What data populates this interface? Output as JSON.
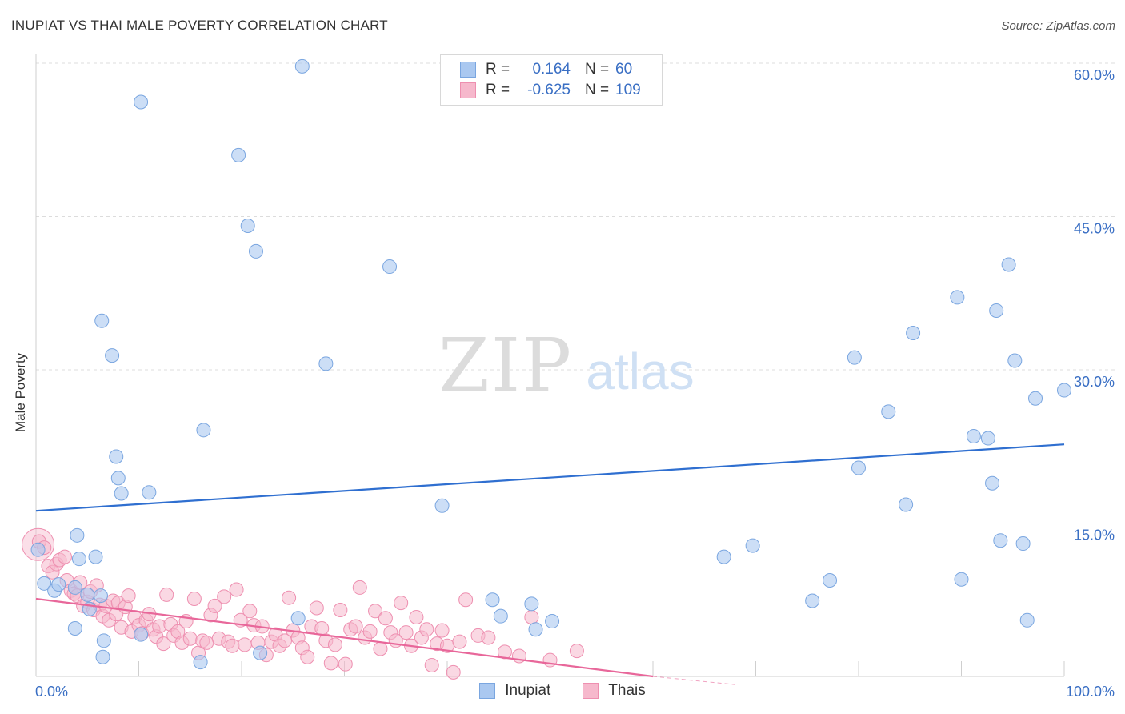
{
  "title": "INUPIAT VS THAI MALE POVERTY CORRELATION CHART",
  "source": "Source: ZipAtlas.com",
  "colors": {
    "inupiat_fill": "#aac8f0",
    "inupiat_stroke": "#7aa6e0",
    "inupiat_line": "#2f6fd0",
    "thai_fill": "#f6b8cc",
    "thai_stroke": "#ee8fb0",
    "thai_line": "#e8679a",
    "tick_text": "#3a6fc4",
    "grid": "#dcdcdc"
  },
  "legend_top": {
    "rows": [
      {
        "r_label": "R =",
        "r_value": "0.164",
        "n_label": "N =",
        "n_value": "60"
      },
      {
        "r_label": "R =",
        "r_value": "-0.625",
        "n_label": "N =",
        "n_value": "109"
      }
    ]
  },
  "legend_bottom": [
    "Inupiat",
    "Thais"
  ],
  "chart_data": {
    "type": "scatter",
    "xlabel": "",
    "ylabel": "Male Poverty",
    "x_range": [
      0,
      100
    ],
    "y_range": [
      0,
      60
    ],
    "x_tick_labels": [
      "0.0%",
      "100.0%"
    ],
    "y_ticks": [
      {
        "value": 15,
        "label": "15.0%"
      },
      {
        "value": 30,
        "label": "30.0%"
      },
      {
        "value": 45,
        "label": "45.0%"
      },
      {
        "value": 60,
        "label": "60.0%"
      }
    ],
    "grid": true,
    "legend_position": "top-center",
    "watermark": "ZIPatlas",
    "series": [
      {
        "name": "Inupiat",
        "trend": [
          [
            0,
            16.2
          ],
          [
            100,
            22.7
          ]
        ],
        "points": [
          [
            0.2,
            12.4
          ],
          [
            0.8,
            9.1
          ],
          [
            1.8,
            8.4
          ],
          [
            2.2,
            9.0
          ],
          [
            3.8,
            8.7
          ],
          [
            4.2,
            11.5
          ],
          [
            4.0,
            13.8
          ],
          [
            5.0,
            8.0
          ],
          [
            5.2,
            6.6
          ],
          [
            6.3,
            7.9
          ],
          [
            5.8,
            11.7
          ],
          [
            3.8,
            4.7
          ],
          [
            6.5,
            1.9
          ],
          [
            6.4,
            34.8
          ],
          [
            7.4,
            31.4
          ],
          [
            7.8,
            21.5
          ],
          [
            8.0,
            19.4
          ],
          [
            8.3,
            17.9
          ],
          [
            6.6,
            3.5
          ],
          [
            10.2,
            56.2
          ],
          [
            10.2,
            4.1
          ],
          [
            11.0,
            18.0
          ],
          [
            16.0,
            1.4
          ],
          [
            16.3,
            24.1
          ],
          [
            19.7,
            51.0
          ],
          [
            20.6,
            44.1
          ],
          [
            21.4,
            41.6
          ],
          [
            21.8,
            2.3
          ],
          [
            25.5,
            5.7
          ],
          [
            25.9,
            59.7
          ],
          [
            28.2,
            30.6
          ],
          [
            34.4,
            40.1
          ],
          [
            39.5,
            16.7
          ],
          [
            44.4,
            7.5
          ],
          [
            45.2,
            5.9
          ],
          [
            48.2,
            7.1
          ],
          [
            48.6,
            4.6
          ],
          [
            50.2,
            5.4
          ],
          [
            66.9,
            11.7
          ],
          [
            69.7,
            12.8
          ],
          [
            75.5,
            7.4
          ],
          [
            77.2,
            9.4
          ],
          [
            79.6,
            31.2
          ],
          [
            80.0,
            20.4
          ],
          [
            82.9,
            25.9
          ],
          [
            84.6,
            16.8
          ],
          [
            85.3,
            33.6
          ],
          [
            89.6,
            37.1
          ],
          [
            90.0,
            9.5
          ],
          [
            91.2,
            23.5
          ],
          [
            92.6,
            23.3
          ],
          [
            93.0,
            18.9
          ],
          [
            93.4,
            35.8
          ],
          [
            93.8,
            13.3
          ],
          [
            94.6,
            40.3
          ],
          [
            95.2,
            30.9
          ],
          [
            96.0,
            13.0
          ],
          [
            96.4,
            5.5
          ],
          [
            97.2,
            27.2
          ],
          [
            100.0,
            28.0
          ]
        ]
      },
      {
        "name": "Thais",
        "trend": [
          [
            0,
            7.6
          ],
          [
            60,
            0.0
          ]
        ],
        "trend_dashed": [
          [
            60,
            0.0
          ],
          [
            68,
            -0.8
          ]
        ],
        "points": [
          [
            0.3,
            13.2
          ],
          [
            0.8,
            12.6
          ],
          [
            1.2,
            10.8
          ],
          [
            1.6,
            10.2
          ],
          [
            2.0,
            11.0
          ],
          [
            2.3,
            11.4
          ],
          [
            2.8,
            11.7
          ],
          [
            3.0,
            9.4
          ],
          [
            3.4,
            8.4
          ],
          [
            3.7,
            8.1
          ],
          [
            4.0,
            7.9
          ],
          [
            4.3,
            9.2
          ],
          [
            4.6,
            6.9
          ],
          [
            5.0,
            7.3
          ],
          [
            5.3,
            8.3
          ],
          [
            5.6,
            6.5
          ],
          [
            5.9,
            8.9
          ],
          [
            6.2,
            7.0
          ],
          [
            6.5,
            5.9
          ],
          [
            6.8,
            6.9
          ],
          [
            7.1,
            5.5
          ],
          [
            7.5,
            7.4
          ],
          [
            7.8,
            6.1
          ],
          [
            8.0,
            7.2
          ],
          [
            8.3,
            4.8
          ],
          [
            8.7,
            6.8
          ],
          [
            9.0,
            7.9
          ],
          [
            9.3,
            4.4
          ],
          [
            9.6,
            5.8
          ],
          [
            10.0,
            5.0
          ],
          [
            10.3,
            4.2
          ],
          [
            10.7,
            5.5
          ],
          [
            11.0,
            6.1
          ],
          [
            11.4,
            4.6
          ],
          [
            11.7,
            3.9
          ],
          [
            12.0,
            4.9
          ],
          [
            12.4,
            3.2
          ],
          [
            12.7,
            8.0
          ],
          [
            13.1,
            5.1
          ],
          [
            13.4,
            4.0
          ],
          [
            13.8,
            4.4
          ],
          [
            14.2,
            3.3
          ],
          [
            14.6,
            5.4
          ],
          [
            15.0,
            3.7
          ],
          [
            15.4,
            7.6
          ],
          [
            15.8,
            2.3
          ],
          [
            16.2,
            3.5
          ],
          [
            16.6,
            3.3
          ],
          [
            17.0,
            6.0
          ],
          [
            17.4,
            6.9
          ],
          [
            17.8,
            3.7
          ],
          [
            18.3,
            7.8
          ],
          [
            18.7,
            3.4
          ],
          [
            19.1,
            3.0
          ],
          [
            19.5,
            8.5
          ],
          [
            19.9,
            5.5
          ],
          [
            20.3,
            3.1
          ],
          [
            20.8,
            6.4
          ],
          [
            21.2,
            5.0
          ],
          [
            21.6,
            3.3
          ],
          [
            22.0,
            4.9
          ],
          [
            22.4,
            2.1
          ],
          [
            22.9,
            3.4
          ],
          [
            23.3,
            4.1
          ],
          [
            23.7,
            3.0
          ],
          [
            24.2,
            3.5
          ],
          [
            24.6,
            7.7
          ],
          [
            25.0,
            4.5
          ],
          [
            25.5,
            3.8
          ],
          [
            25.9,
            2.8
          ],
          [
            26.4,
            1.9
          ],
          [
            26.8,
            4.9
          ],
          [
            27.3,
            6.7
          ],
          [
            27.8,
            4.7
          ],
          [
            28.2,
            3.5
          ],
          [
            28.7,
            1.3
          ],
          [
            29.1,
            3.1
          ],
          [
            29.6,
            6.5
          ],
          [
            30.1,
            1.2
          ],
          [
            30.6,
            4.6
          ],
          [
            31.1,
            4.9
          ],
          [
            31.5,
            8.7
          ],
          [
            32.0,
            3.8
          ],
          [
            32.5,
            4.4
          ],
          [
            33.0,
            6.4
          ],
          [
            33.5,
            2.7
          ],
          [
            34.0,
            5.7
          ],
          [
            34.5,
            4.3
          ],
          [
            35.0,
            3.5
          ],
          [
            35.5,
            7.2
          ],
          [
            36.0,
            4.3
          ],
          [
            36.5,
            3.0
          ],
          [
            37.0,
            5.8
          ],
          [
            37.5,
            3.8
          ],
          [
            38.0,
            4.6
          ],
          [
            38.5,
            1.1
          ],
          [
            39.0,
            3.2
          ],
          [
            39.5,
            4.5
          ],
          [
            40.0,
            3.0
          ],
          [
            40.6,
            0.4
          ],
          [
            41.2,
            3.4
          ],
          [
            41.8,
            7.5
          ],
          [
            43.0,
            4.0
          ],
          [
            44.0,
            3.8
          ],
          [
            45.6,
            2.4
          ],
          [
            47.0,
            2.0
          ],
          [
            48.2,
            5.8
          ],
          [
            50.0,
            1.6
          ],
          [
            52.6,
            2.5
          ]
        ]
      }
    ]
  }
}
